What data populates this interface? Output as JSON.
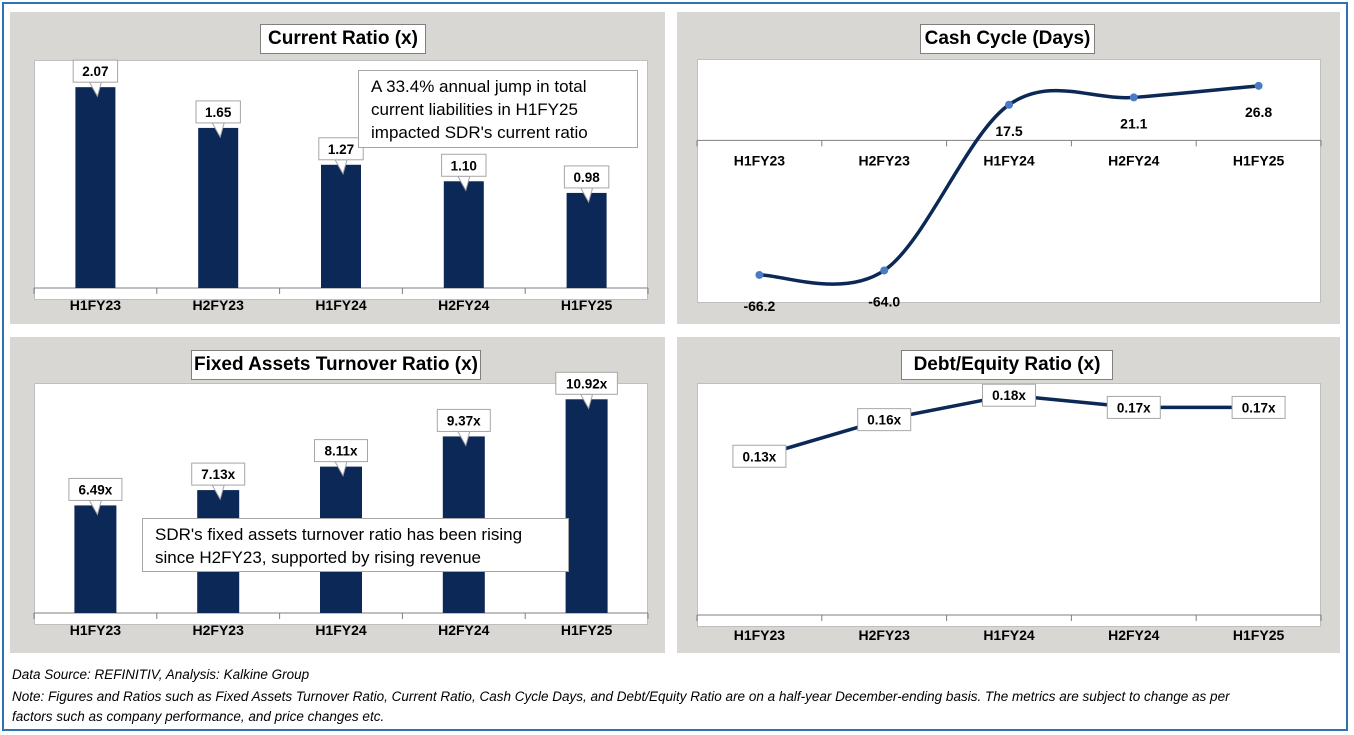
{
  "footer": {
    "source": "Data Source: REFINITIV, Analysis: Kalkine Group",
    "note_line1": "Note: Figures and Ratios such as Fixed Assets Turnover Ratio, Current Ratio, Cash Cycle Days, and Debt/Equity Ratio  are on a half-year December-ending basis. The metrics are subject to change as per",
    "note_line2": "factors such as company performance, and price changes etc."
  },
  "annotations": {
    "current_ratio": "A 33.4% annual jump in total current liabilities in H1FY25 impacted SDR's current ratio",
    "fixed_assets": "SDR's fixed assets turnover ratio has been rising since H2FY23, supported by rising revenue"
  },
  "colors": {
    "bar": "#0c2857",
    "line": "#0c2857",
    "marker": "#4a7cc4",
    "panel_bg": "#d9d7d3",
    "frame": "#2e74b5"
  },
  "chart_data": [
    {
      "id": "current_ratio",
      "type": "bar",
      "title": "Current Ratio (x)",
      "categories": [
        "H1FY23",
        "H2FY23",
        "H1FY24",
        "H2FY24",
        "H1FY25"
      ],
      "values": [
        2.07,
        1.65,
        1.27,
        1.1,
        0.98
      ],
      "labels": [
        "2.07",
        "1.65",
        "1.27",
        "1.10",
        "0.98"
      ],
      "ylim": [
        0,
        2.35
      ],
      "grid": false
    },
    {
      "id": "cash_cycle",
      "type": "line",
      "title": "Cash Cycle (Days)",
      "categories": [
        "H1FY23",
        "H2FY23",
        "H1FY24",
        "H2FY24",
        "H1FY25"
      ],
      "values": [
        -66.2,
        -64.0,
        17.5,
        21.1,
        26.8
      ],
      "labels": [
        "-66.2",
        "-64.0",
        "17.5",
        "21.1",
        "26.8"
      ],
      "ylim": [
        -80,
        40
      ],
      "smooth": true,
      "grid": false
    },
    {
      "id": "fixed_assets",
      "type": "bar",
      "title": "Fixed Assets Turnover Ratio (x)",
      "categories": [
        "H1FY23",
        "H2FY23",
        "H1FY24",
        "H2FY24",
        "H1FY25"
      ],
      "values": [
        6.49,
        7.13,
        8.11,
        9.37,
        10.92
      ],
      "labels": [
        "6.49x",
        "7.13x",
        "8.11x",
        "9.37x",
        "10.92x"
      ],
      "ylim": [
        2.0,
        11.6
      ],
      "grid": false
    },
    {
      "id": "debt_equity",
      "type": "line",
      "title": "Debt/Equity Ratio (x)",
      "categories": [
        "H1FY23",
        "H2FY23",
        "H1FY24",
        "H2FY24",
        "H1FY25"
      ],
      "values": [
        0.13,
        0.16,
        0.18,
        0.17,
        0.17
      ],
      "labels": [
        "0.13x",
        "0.16x",
        "0.18x",
        "0.17x",
        "0.17x"
      ],
      "ylim": [
        0.0,
        0.19
      ],
      "grid": false
    }
  ]
}
